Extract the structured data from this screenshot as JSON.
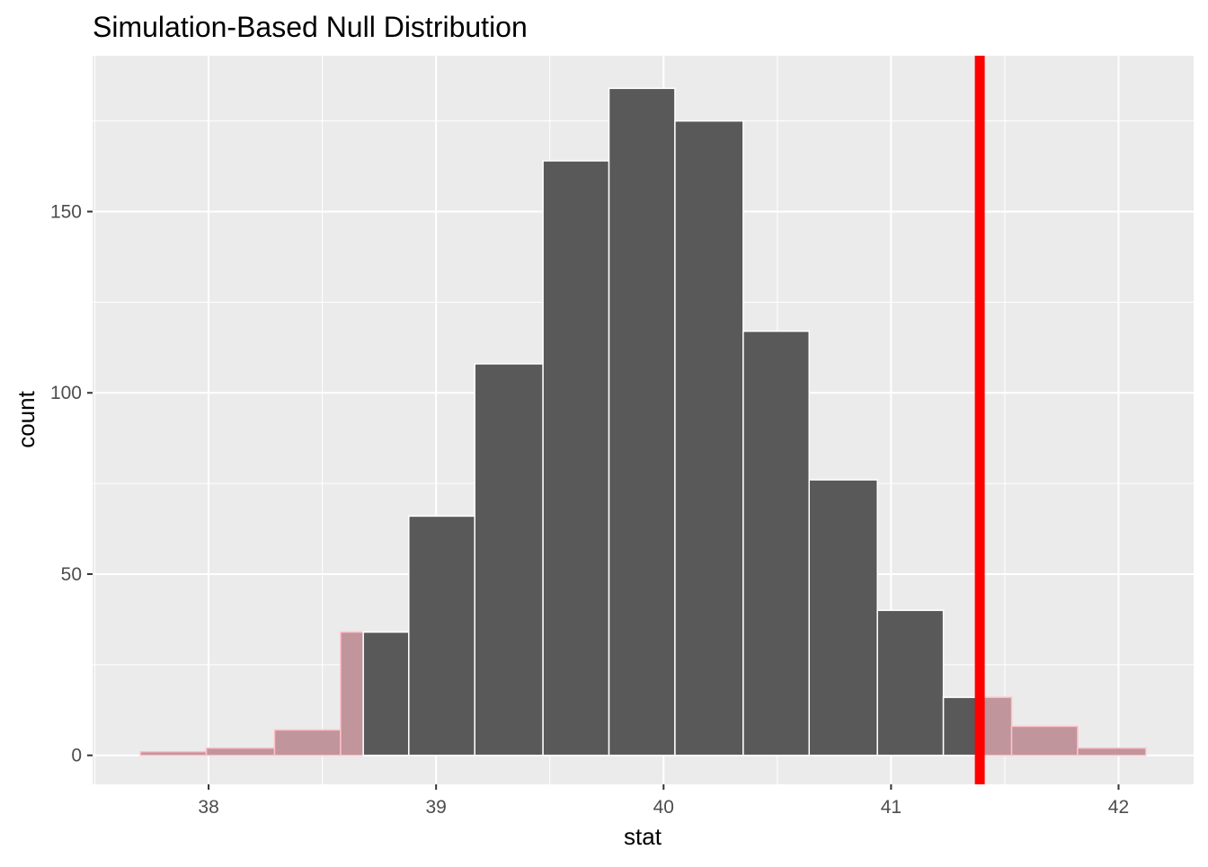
{
  "chart_data": {
    "type": "histogram",
    "title": "Simulation-Based Null Distribution",
    "xlabel": "stat",
    "ylabel": "count",
    "xlim": [
      37.49,
      42.33
    ],
    "ylim": [
      -8,
      193
    ],
    "x_ticks": [
      38,
      39,
      40,
      41,
      42
    ],
    "y_ticks": [
      0,
      50,
      100,
      150
    ],
    "grid": true,
    "bin_edges": [
      37.7,
      37.99,
      38.29,
      38.58,
      38.88,
      39.17,
      39.47,
      39.76,
      40.05,
      40.35,
      40.64,
      40.94,
      41.23,
      41.53,
      41.82,
      42.12
    ],
    "counts": [
      1,
      2,
      7,
      34,
      66,
      108,
      164,
      184,
      175,
      117,
      76,
      40,
      16,
      8,
      2
    ],
    "observed_stat": 41.39,
    "shade_direction": "two-sided",
    "shade_lower_bound": 38.68,
    "colors": {
      "panel": "#EBEBEB",
      "bar": "#595959",
      "shade_fill": "#C0959B",
      "shade_outline": "#FFC0CB",
      "observed_line": "#FF0000"
    }
  }
}
